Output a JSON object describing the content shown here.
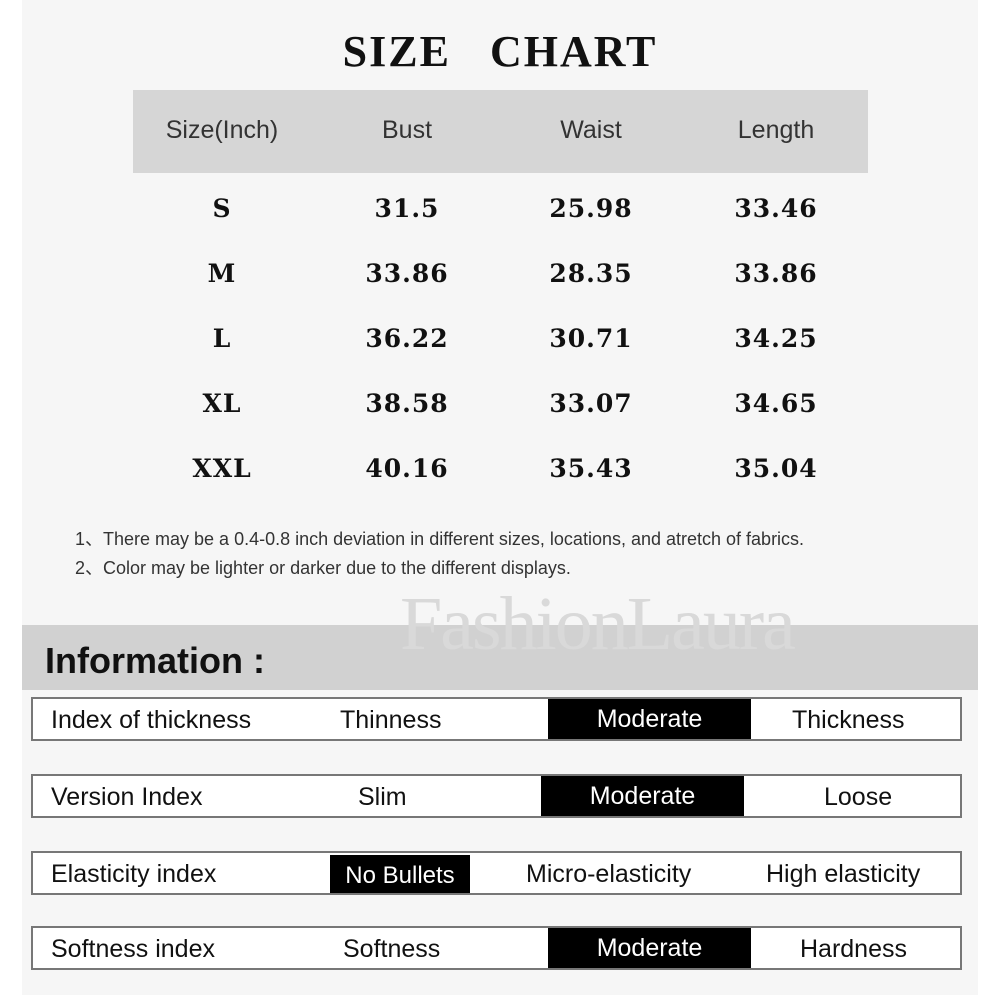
{
  "title": "SIZE CHART",
  "table": {
    "headers": [
      "Size(Inch)",
      "Bust",
      "Waist",
      "Length"
    ],
    "rows": [
      [
        "S",
        "31.5",
        "25.98",
        "33.46"
      ],
      [
        "M",
        "33.86",
        "28.35",
        "33.86"
      ],
      [
        "L",
        "36.22",
        "30.71",
        "34.25"
      ],
      [
        "XL",
        "38.58",
        "33.07",
        "34.65"
      ],
      [
        "XXL",
        "40.16",
        "35.43",
        "35.04"
      ]
    ]
  },
  "notes": [
    "1、There may be a 0.4-0.8 inch deviation in different sizes, locations, and atretch of fabrics.",
    "2、Color may be lighter or darker due to the different displays."
  ],
  "watermark": "FashionLaura",
  "information": {
    "heading": "Information :",
    "rows": [
      {
        "label": "Index of thickness",
        "options": [
          "Thinness",
          "Moderate",
          "Thickness"
        ],
        "selected": "Moderate"
      },
      {
        "label": "Version Index",
        "options": [
          "Slim",
          "Moderate",
          "Loose"
        ],
        "selected": "Moderate"
      },
      {
        "label": "Elasticity index",
        "options": [
          "No Bullets",
          "Micro-elasticity",
          "High elasticity"
        ],
        "selected": "No Bullets"
      },
      {
        "label": "Softness index",
        "options": [
          "Softness",
          "Moderate",
          "Hardness"
        ],
        "selected": "Moderate"
      }
    ]
  },
  "colors": {
    "highlight": "#000000",
    "header_bg": "#d6d6d6"
  }
}
